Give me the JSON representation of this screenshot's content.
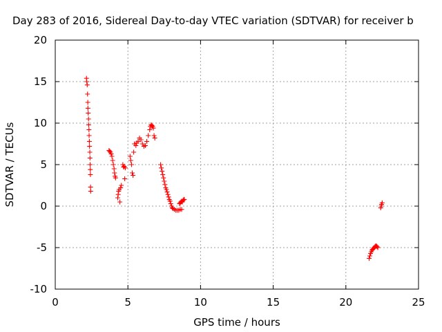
{
  "chart_data": {
    "type": "scatter",
    "title": "Day 283 of 2016, Sidereal Day-to-day VTEC variation (SDTVAR) for receiver b",
    "xlabel": "GPS time / hours",
    "ylabel": "SDTVAR / TECUs",
    "xlim": [
      0,
      25
    ],
    "ylim": [
      -10,
      20
    ],
    "x_ticks": [
      0,
      5,
      10,
      15,
      20,
      25
    ],
    "y_ticks": [
      -10,
      -5,
      0,
      5,
      10,
      15,
      20
    ],
    "grid": true,
    "legend": "none",
    "marker": "plus",
    "series_color": "#ff0000",
    "series": [
      {
        "points": [
          [
            2.15,
            15.4
          ],
          [
            2.17,
            15.0
          ],
          [
            2.2,
            14.6
          ],
          [
            2.22,
            13.5
          ],
          [
            2.24,
            12.5
          ],
          [
            2.25,
            11.8
          ],
          [
            2.27,
            11.2
          ],
          [
            2.29,
            10.5
          ],
          [
            2.3,
            9.8
          ],
          [
            2.32,
            9.2
          ],
          [
            2.33,
            8.5
          ],
          [
            2.35,
            7.8
          ],
          [
            2.36,
            7.2
          ],
          [
            2.38,
            6.5
          ],
          [
            2.39,
            5.8
          ],
          [
            2.4,
            5.0
          ],
          [
            2.41,
            4.4
          ],
          [
            2.42,
            3.8
          ],
          [
            2.43,
            2.3
          ],
          [
            2.44,
            1.8
          ],
          [
            3.7,
            6.7
          ],
          [
            3.75,
            6.6
          ],
          [
            3.8,
            6.5
          ],
          [
            3.85,
            6.3
          ],
          [
            3.9,
            6.0
          ],
          [
            3.95,
            5.5
          ],
          [
            4.0,
            5.0
          ],
          [
            4.05,
            4.5
          ],
          [
            4.08,
            4.0
          ],
          [
            4.12,
            3.6
          ],
          [
            4.15,
            3.4
          ],
          [
            4.3,
            1.0
          ],
          [
            4.33,
            1.4
          ],
          [
            4.36,
            1.8
          ],
          [
            4.4,
            2.0
          ],
          [
            4.45,
            0.5
          ],
          [
            4.5,
            2.2
          ],
          [
            4.55,
            2.5
          ],
          [
            4.65,
            5.0
          ],
          [
            4.7,
            4.7
          ],
          [
            4.75,
            4.8
          ],
          [
            4.78,
            3.3
          ],
          [
            4.82,
            4.6
          ],
          [
            5.15,
            6.0
          ],
          [
            5.2,
            5.5
          ],
          [
            5.25,
            5.0
          ],
          [
            5.3,
            4.0
          ],
          [
            5.35,
            3.7
          ],
          [
            5.4,
            6.5
          ],
          [
            5.45,
            7.5
          ],
          [
            5.55,
            7.3
          ],
          [
            5.6,
            7.6
          ],
          [
            5.7,
            7.8
          ],
          [
            5.8,
            8.2
          ],
          [
            5.9,
            8.0
          ],
          [
            6.0,
            7.5
          ],
          [
            6.1,
            7.2
          ],
          [
            6.2,
            7.3
          ],
          [
            6.3,
            7.8
          ],
          [
            6.4,
            8.5
          ],
          [
            6.5,
            9.2
          ],
          [
            6.55,
            9.6
          ],
          [
            6.6,
            9.8
          ],
          [
            6.65,
            9.7
          ],
          [
            6.7,
            9.6
          ],
          [
            6.75,
            9.4
          ],
          [
            6.8,
            8.5
          ],
          [
            6.85,
            8.2
          ],
          [
            7.25,
            5.0
          ],
          [
            7.3,
            4.6
          ],
          [
            7.35,
            4.2
          ],
          [
            7.4,
            3.8
          ],
          [
            7.45,
            3.4
          ],
          [
            7.5,
            3.0
          ],
          [
            7.55,
            2.6
          ],
          [
            7.6,
            2.2
          ],
          [
            7.65,
            2.0
          ],
          [
            7.7,
            1.7
          ],
          [
            7.75,
            1.4
          ],
          [
            7.8,
            1.1
          ],
          [
            7.85,
            0.8
          ],
          [
            7.9,
            0.6
          ],
          [
            7.95,
            0.3
          ],
          [
            8.0,
            0.0
          ],
          [
            8.05,
            -0.2
          ],
          [
            8.1,
            -0.3
          ],
          [
            8.2,
            -0.4
          ],
          [
            8.3,
            -0.5
          ],
          [
            8.4,
            -0.5
          ],
          [
            8.5,
            -0.5
          ],
          [
            8.6,
            -0.4
          ],
          [
            8.7,
            -0.4
          ],
          [
            8.55,
            0.3
          ],
          [
            8.6,
            0.4
          ],
          [
            8.65,
            0.5
          ],
          [
            8.7,
            0.6
          ],
          [
            8.75,
            0.5
          ],
          [
            8.8,
            0.7
          ],
          [
            8.85,
            0.8
          ],
          [
            8.88,
            0.8
          ],
          [
            21.6,
            -6.3
          ],
          [
            21.65,
            -6.0
          ],
          [
            21.7,
            -5.7
          ],
          [
            21.75,
            -5.5
          ],
          [
            21.8,
            -5.3
          ],
          [
            21.85,
            -5.2
          ],
          [
            21.9,
            -5.1
          ],
          [
            21.95,
            -5.0
          ],
          [
            22.0,
            -4.9
          ],
          [
            22.05,
            -4.8
          ],
          [
            22.1,
            -4.8
          ],
          [
            22.15,
            -4.9
          ],
          [
            22.2,
            -5.0
          ],
          [
            22.4,
            -0.2
          ],
          [
            22.43,
            0.0
          ],
          [
            22.46,
            0.2
          ],
          [
            22.5,
            0.4
          ]
        ]
      }
    ]
  }
}
